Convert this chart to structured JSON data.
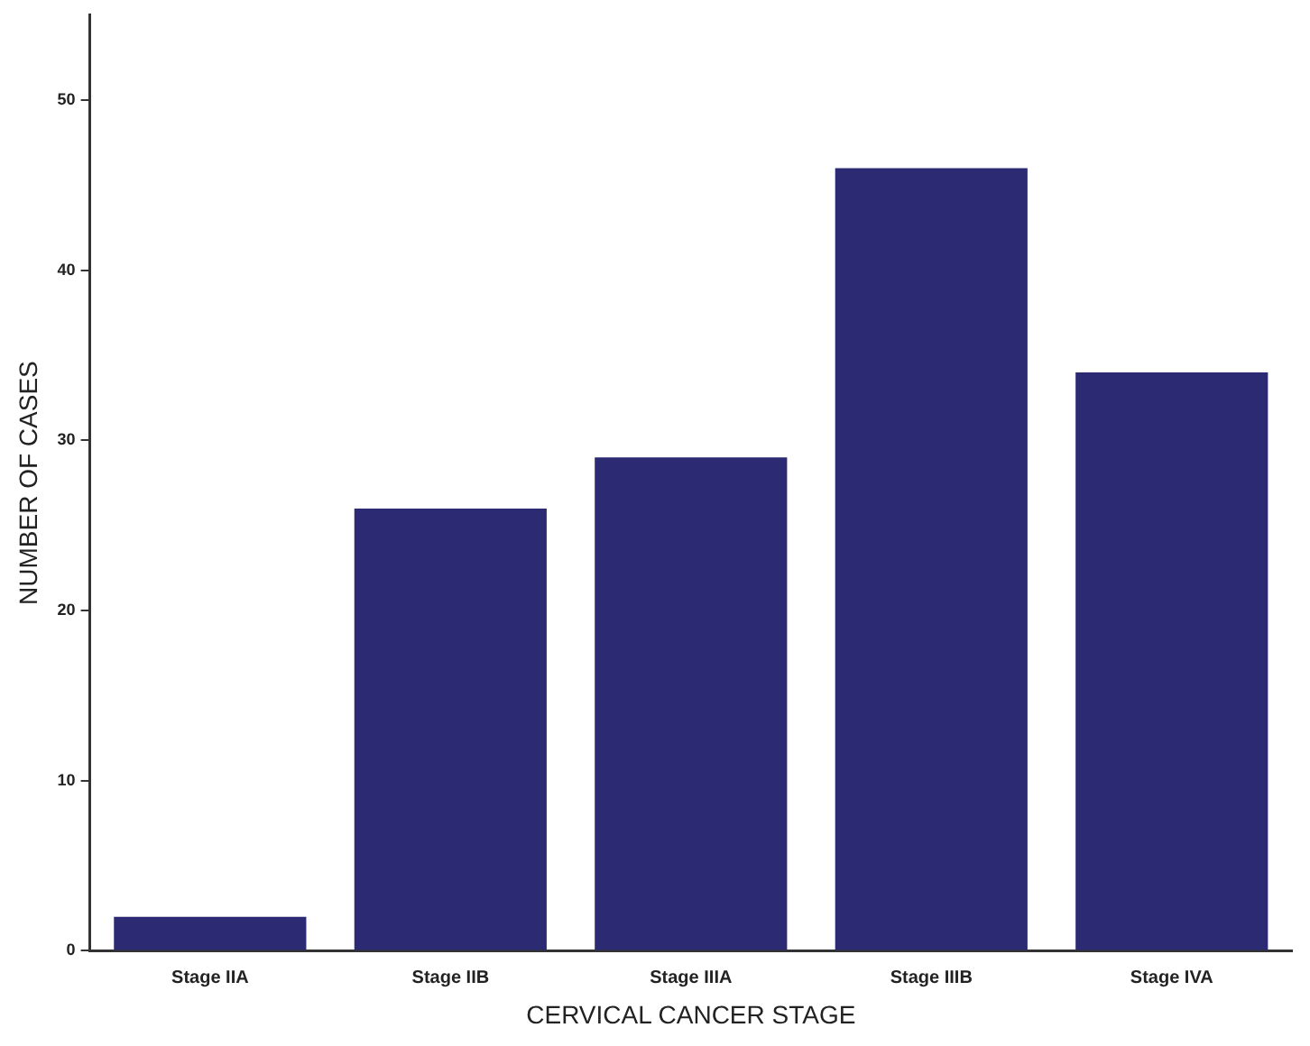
{
  "chart_data": {
    "type": "bar",
    "xlabel": "CERVICAL CANCER STAGE",
    "ylabel": "NUMBER OF CASES",
    "categories": [
      "Stage IIA",
      "Stage IIB",
      "Stage IIIA",
      "Stage IIIB",
      "Stage IVA"
    ],
    "values": [
      2,
      26,
      29,
      46,
      34
    ],
    "color": "#2b2a72",
    "ylim": [
      0,
      55
    ],
    "yticks": [
      0,
      10,
      20,
      30,
      40,
      50
    ],
    "grid": false,
    "legend": false
  }
}
